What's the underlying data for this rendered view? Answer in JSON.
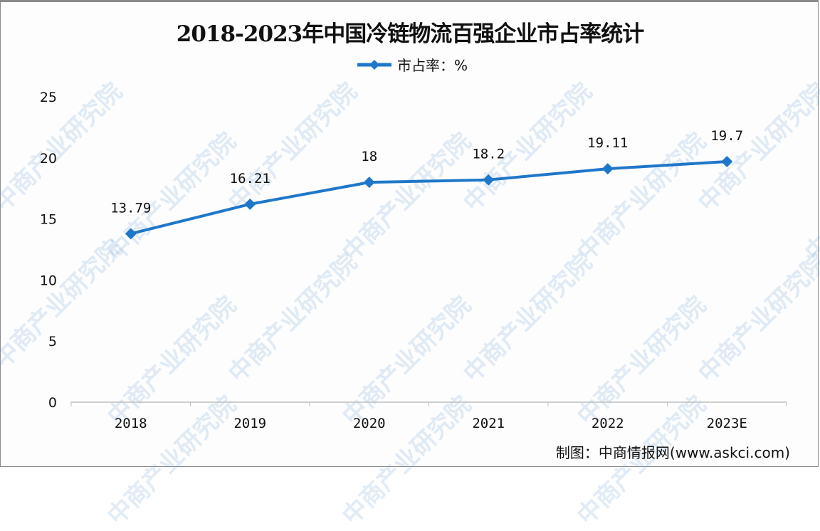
{
  "watermark": "中商产业研究院",
  "source": "制图：中商情报网(www.askci.com)",
  "colors": {
    "line": "#1f77c9",
    "axis": "#bfbfbf",
    "text": "#111111"
  },
  "chart_data": {
    "type": "line",
    "title": "2018-2023年中国冷链物流百强企业市占率统计",
    "categories": [
      "2018",
      "2019",
      "2020",
      "2021",
      "2022",
      "2023E"
    ],
    "series": [
      {
        "name": "市占率：%",
        "values": [
          13.79,
          16.21,
          18,
          18.2,
          19.11,
          19.7
        ],
        "labels": [
          "13.79",
          "16.21",
          "18",
          "18.2",
          "19.11",
          "19.7"
        ],
        "marker": "diamond"
      }
    ],
    "yticks": [
      "0",
      "5",
      "10",
      "15",
      "20",
      "25"
    ],
    "ylim": [
      0,
      25
    ],
    "grid": false,
    "legend": "top-center"
  }
}
